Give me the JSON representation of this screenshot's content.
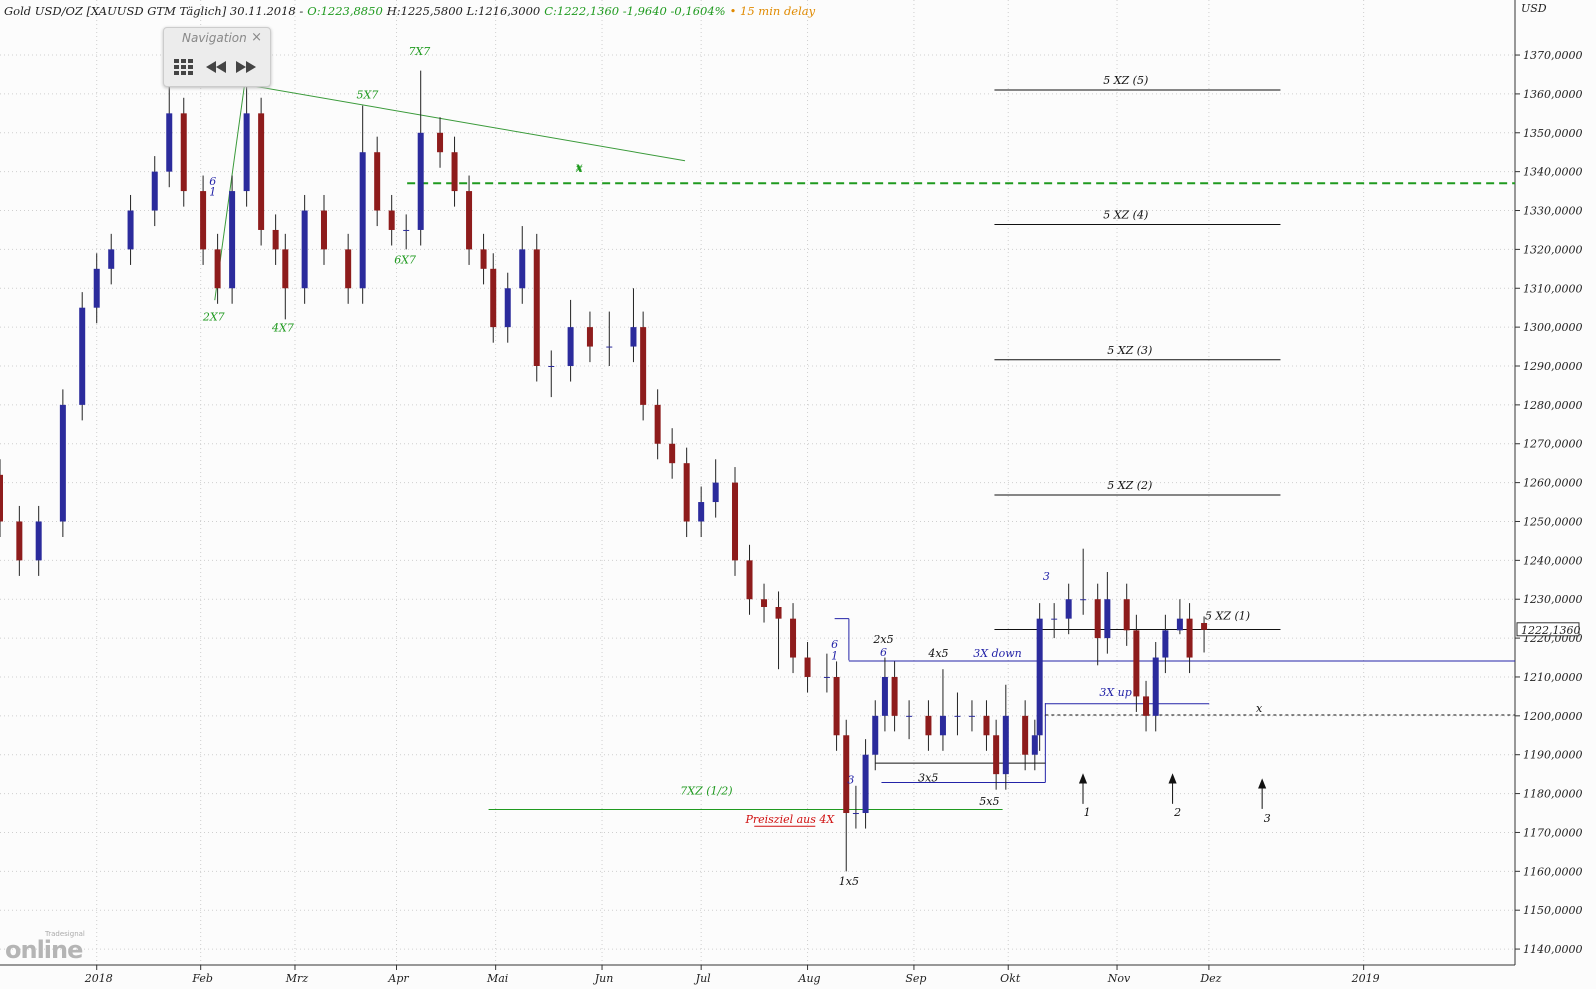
{
  "chart_data": {
    "type": "candlestick",
    "header": [
      {
        "text": "Gold USD/OZ [XAUUSD GTM Täglich] 30.11.2018 -",
        "color": "#222222"
      },
      {
        "text": "O:1223,8850",
        "color": "#1f9a1f"
      },
      {
        "text": "H:1225,5800 L:1216,3000",
        "color": "#222222"
      },
      {
        "text": "C:1222,1360 -1,9640 -0,1604%",
        "color": "#1f9a1f"
      },
      {
        "text": "• 15 min delay",
        "color": "#e08a00"
      }
    ],
    "y_unit": "USD",
    "series": [
      {
        "up_color": "#2b2b9c",
        "down_color": "#8e1c1c",
        "x": [
          -20,
          -16,
          -12,
          -7,
          -3,
          0,
          3,
          7,
          12,
          15,
          18,
          22,
          25,
          28,
          31,
          34,
          37,
          39,
          43,
          47,
          52,
          55,
          58,
          61,
          64,
          67,
          71,
          74,
          77,
          80,
          82,
          85,
          88,
          91,
          94,
          98,
          102,
          106,
          111,
          113,
          116,
          119,
          122,
          125,
          128,
          132,
          135,
          138,
          141,
          144,
          147,
          151,
          153,
          155,
          157,
          159,
          161,
          163,
          165,
          168,
          172,
          175,
          178,
          181,
          184,
          186,
          188,
          192,
          194,
          195,
          198,
          201,
          204,
          207,
          209,
          213,
          215,
          217,
          219,
          221,
          224,
          226,
          229
        ],
        "open": [
          1262,
          1250,
          1240,
          1250,
          1280,
          1305,
          1315,
          1320,
          1330,
          1340,
          1355,
          1335,
          1320,
          1310,
          1335,
          1355,
          1325,
          1320,
          1310,
          1330,
          1320,
          1310,
          1345,
          1330,
          1325,
          1325,
          1350,
          1345,
          1335,
          1320,
          1315,
          1300,
          1310,
          1320,
          1290,
          1290,
          1300,
          1295,
          1295,
          1300,
          1280,
          1270,
          1265,
          1250,
          1255,
          1260,
          1240,
          1230,
          1228,
          1225,
          1215,
          1210,
          1210,
          1195,
          1175,
          1175,
          1190,
          1200,
          1210,
          1200,
          1200,
          1195,
          1200,
          1200,
          1200,
          1195,
          1185,
          1200,
          1190,
          1195,
          1225,
          1225,
          1230,
          1230,
          1220,
          1230,
          1222,
          1205,
          1200,
          1215,
          1222,
          1225,
          1223.885
        ],
        "high": [
          1266,
          1254,
          1254,
          1284,
          1309,
          1319,
          1324,
          1334,
          1344,
          1365,
          1359,
          1339,
          1324,
          1339,
          1362,
          1359,
          1329,
          1324,
          1334,
          1334,
          1324,
          1357,
          1349,
          1334,
          1329,
          1366,
          1354,
          1349,
          1339,
          1324,
          1319,
          1314,
          1326,
          1324,
          1294,
          1307,
          1304,
          1304,
          1310,
          1304,
          1284,
          1274,
          1269,
          1259,
          1266,
          1264,
          1244,
          1234,
          1232,
          1229,
          1219,
          1216,
          1214,
          1199,
          1182,
          1194,
          1204,
          1215,
          1214,
          1204,
          1204,
          1212,
          1206,
          1204,
          1204,
          1199,
          1208,
          1204,
          1199,
          1229,
          1229,
          1234,
          1243,
          1234,
          1237,
          1234,
          1226,
          1209,
          1219,
          1226,
          1230,
          1229,
          1225.58
        ],
        "low": [
          1246,
          1236,
          1236,
          1246,
          1276,
          1301,
          1311,
          1316,
          1326,
          1336,
          1331,
          1316,
          1306,
          1306,
          1331,
          1321,
          1316,
          1302,
          1306,
          1316,
          1306,
          1306,
          1326,
          1321,
          1320,
          1321,
          1341,
          1331,
          1316,
          1311,
          1296,
          1296,
          1306,
          1286,
          1282,
          1286,
          1291,
          1290,
          1291,
          1276,
          1266,
          1261,
          1246,
          1246,
          1251,
          1236,
          1226,
          1224,
          1212,
          1211,
          1206,
          1206,
          1191,
          1160,
          1171,
          1171,
          1186,
          1196,
          1196,
          1194,
          1191,
          1191,
          1195,
          1196,
          1191,
          1181,
          1181,
          1186,
          1186,
          1191,
          1220,
          1221,
          1226,
          1213,
          1216,
          1218,
          1201,
          1196,
          1196,
          1211,
          1221,
          1211,
          1216.3
        ],
        "close": [
          1250,
          1240,
          1250,
          1280,
          1305,
          1315,
          1320,
          1330,
          1340,
          1355,
          1335,
          1320,
          1310,
          1335,
          1355,
          1325,
          1320,
          1310,
          1330,
          1320,
          1310,
          1345,
          1330,
          1325,
          1325,
          1350,
          1345,
          1335,
          1320,
          1315,
          1300,
          1310,
          1320,
          1290,
          1290,
          1300,
          1295,
          1295,
          1300,
          1280,
          1270,
          1265,
          1250,
          1255,
          1260,
          1240,
          1230,
          1228,
          1225,
          1215,
          1210,
          1210,
          1195,
          1175,
          1175,
          1190,
          1200,
          1210,
          1200,
          1200,
          1195,
          1200,
          1200,
          1200,
          1195,
          1185,
          1200,
          1190,
          1195,
          1225,
          1225,
          1230,
          1230,
          1220,
          1230,
          1222,
          1205,
          1200,
          1215,
          1222,
          1225,
          1215,
          1222.136
        ]
      }
    ],
    "last": {
      "value": 1222.136,
      "label": "1222,1360"
    },
    "xlim": [
      -20,
      293.3
    ],
    "ylim": [
      1135.9,
      1382.1
    ],
    "grid": true,
    "xticks": [
      {
        "value": 0,
        "label": "2018"
      },
      {
        "value": 21.5,
        "label": "Feb"
      },
      {
        "value": 41,
        "label": "Mrz"
      },
      {
        "value": 62,
        "label": "Apr"
      },
      {
        "value": 82.5,
        "label": "Mai"
      },
      {
        "value": 104.5,
        "label": "Jun"
      },
      {
        "value": 125,
        "label": "Jul"
      },
      {
        "value": 147,
        "label": "Aug"
      },
      {
        "value": 169,
        "label": "Sep"
      },
      {
        "value": 188.5,
        "label": "Okt"
      },
      {
        "value": 211,
        "label": "Nov"
      },
      {
        "value": 230,
        "label": "Dez"
      },
      {
        "value": 262,
        "label": "2019"
      }
    ],
    "yticks": [
      {
        "value": 1140,
        "label": "1140,0000"
      },
      {
        "value": 1150,
        "label": "1150,0000"
      },
      {
        "value": 1160,
        "label": "1160,0000"
      },
      {
        "value": 1170,
        "label": "1170,0000"
      },
      {
        "value": 1180,
        "label": "1180,0000"
      },
      {
        "value": 1190,
        "label": "1190,0000"
      },
      {
        "value": 1200,
        "label": "1200,0000"
      },
      {
        "value": 1210,
        "label": "1210,0000"
      },
      {
        "value": 1220,
        "label": "1220,0000"
      },
      {
        "value": 1230,
        "label": "1230,0000"
      },
      {
        "value": 1240,
        "label": "1240,0000"
      },
      {
        "value": 1250,
        "label": "1250,0000"
      },
      {
        "value": 1260,
        "label": "1260,0000"
      },
      {
        "value": 1270,
        "label": "1270,0000"
      },
      {
        "value": 1280,
        "label": "1280,0000"
      },
      {
        "value": 1290,
        "label": "1290,0000"
      },
      {
        "value": 1300,
        "label": "1300,0000"
      },
      {
        "value": 1310,
        "label": "1310,0000"
      },
      {
        "value": 1320,
        "label": "1320,0000"
      },
      {
        "value": 1330,
        "label": "1330,0000"
      },
      {
        "value": 1340,
        "label": "1340,0000"
      },
      {
        "value": 1350,
        "label": "1350,0000"
      },
      {
        "value": 1360,
        "label": "1360,0000"
      },
      {
        "value": 1370,
        "label": "1370,0000"
      }
    ],
    "levels": [
      {
        "label": "5 XZ (5)",
        "value": 1361,
        "color": "#111111",
        "dashed": false
      },
      {
        "label": "5 XZ (4)",
        "value": 1326.4,
        "color": "#111111",
        "dashed": false
      },
      {
        "label": "5 XZ (3)",
        "value": 1291.6,
        "color": "#111111",
        "dashed": false
      },
      {
        "label": "5 XZ (2)",
        "value": 1256.8,
        "color": "#111111",
        "dashed": false
      },
      {
        "label": "5 XZ (1)",
        "value": 1222.2,
        "color": "#111111",
        "dashed": false
      },
      {
        "label": "x",
        "value": 1337,
        "color": "#1f9a1f",
        "dashed": true
      },
      {
        "label": "3X down",
        "value": 1214.1,
        "color": "#2424a8",
        "dashed": false
      },
      {
        "label": "3X up",
        "value": 1203.1,
        "color": "#2424a8",
        "dashed": false
      },
      {
        "label": "x",
        "value": 1200.2,
        "color": "#111111",
        "dashed": true
      },
      {
        "label": "7XZ (1/2)",
        "value": 1175.9,
        "color": "#1f9a1f",
        "dashed": false
      }
    ],
    "annotations": [
      {
        "text": "2X7",
        "color": "#1f9a1f"
      },
      {
        "text": "4X7",
        "color": "#1f9a1f"
      },
      {
        "text": "5X7",
        "color": "#1f9a1f"
      },
      {
        "text": "6X7",
        "color": "#1f9a1f"
      },
      {
        "text": "7X7",
        "color": "#1f9a1f"
      },
      {
        "text": "x",
        "color": "#1f9a1f"
      },
      {
        "text": "6",
        "color": "#2424a8"
      },
      {
        "text": "1",
        "color": "#2424a8"
      },
      {
        "text": "3",
        "color": "#2424a8"
      },
      {
        "text": "2x5",
        "color": "#111111"
      },
      {
        "text": "6",
        "color": "#2424a8"
      },
      {
        "text": "6",
        "color": "#2424a8"
      },
      {
        "text": "1",
        "color": "#2424a8"
      },
      {
        "text": "4x5",
        "color": "#111111"
      },
      {
        "text": "3x5",
        "color": "#111111"
      },
      {
        "text": "5x5",
        "color": "#111111"
      },
      {
        "text": "Preisziel aus 4X",
        "color": "#d01010"
      },
      {
        "text": "1x5",
        "color": "#111111"
      },
      {
        "text": "1",
        "color": "#111111"
      },
      {
        "text": "2",
        "color": "#111111"
      },
      {
        "text": "3",
        "color": "#111111"
      },
      {
        "text": "3",
        "color": "#2424a8"
      }
    ]
  },
  "ui": {
    "navigation": {
      "title": "Navigation",
      "close": "×"
    },
    "logo": {
      "top": "Tradesignal",
      "main": "online"
    }
  }
}
